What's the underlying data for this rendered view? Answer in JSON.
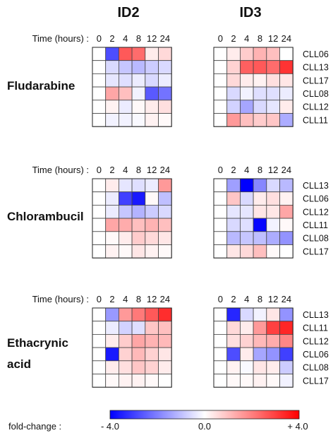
{
  "chart_data": {
    "type": "heatmap",
    "columns": [
      "ID2",
      "ID3"
    ],
    "time_label": "Time (hours) :",
    "timepoints": [
      "0",
      "2",
      "4",
      "8",
      "12",
      "24"
    ],
    "value_range": [
      -4,
      4
    ],
    "colorbar": {
      "label": "fold-change :",
      "ticks": [
        "- 4.0",
        "0.0",
        "+ 4.0"
      ],
      "low_color": "#0000ff",
      "mid_color": "#ffffff",
      "high_color": "#ff0000"
    },
    "panels": [
      {
        "drug": [
          "Fludarabine"
        ],
        "rows": [
          "CLL06",
          "CLL13",
          "CLL17",
          "CLL08",
          "CLL12",
          "CLL11"
        ],
        "ID2": [
          [
            0,
            -2.8,
            2.6,
            2.3,
            0.3,
            0.6
          ],
          [
            0,
            -0.6,
            -0.9,
            -1.1,
            -0.8,
            -0.6
          ],
          [
            0,
            -0.4,
            -0.5,
            -0.3,
            -0.6,
            -0.3
          ],
          [
            0,
            1.4,
            1.0,
            -0.2,
            -2.6,
            -2.2
          ],
          [
            0,
            0.2,
            -0.3,
            0.1,
            0.3,
            0.5
          ],
          [
            0,
            -0.2,
            -0.2,
            -0.1,
            0.2,
            0.1
          ]
        ],
        "ID3": [
          [
            0,
            0.3,
            0.8,
            1.2,
            1.0,
            0.0
          ],
          [
            0,
            0.7,
            2.5,
            2.6,
            2.3,
            3.2
          ],
          [
            0,
            0.6,
            0.3,
            0.2,
            0.5,
            0.4
          ],
          [
            0,
            -0.6,
            -0.2,
            -0.5,
            -0.5,
            -0.3
          ],
          [
            0,
            -0.7,
            -1.4,
            -0.6,
            -0.4,
            0.3
          ],
          [
            0,
            1.6,
            1.0,
            0.8,
            0.9,
            -1.3
          ]
        ]
      },
      {
        "drug": [
          "Chlorambucil"
        ],
        "rows": [
          "CLL13",
          "CLL06",
          "CLL12",
          "CLL11",
          "CLL08",
          "CLL17"
        ],
        "ID2": [
          [
            0,
            0.3,
            -0.4,
            -0.5,
            -0.3,
            1.6
          ],
          [
            0,
            -0.3,
            -3.0,
            -3.6,
            0.1,
            -1.0
          ],
          [
            0,
            -0.3,
            -0.9,
            -1.2,
            -0.8,
            -0.6
          ],
          [
            0,
            1.4,
            1.3,
            1.0,
            1.2,
            1.0
          ],
          [
            0,
            0.1,
            0.3,
            0.8,
            0.6,
            0.4
          ],
          [
            0,
            0.2,
            0.1,
            0.4,
            0.2,
            0.1
          ]
        ],
        "ID3": [
          [
            0,
            -1.5,
            -4.0,
            -1.9,
            -0.6,
            -1.1
          ],
          [
            0,
            0.9,
            -0.6,
            0.3,
            0.5,
            0.2
          ],
          [
            0,
            -0.4,
            -0.4,
            0.4,
            0.4,
            1.4
          ],
          [
            0,
            -0.6,
            -0.5,
            -3.9,
            -0.2,
            0.1
          ],
          [
            0,
            -1.1,
            -0.9,
            -1.0,
            -1.3,
            -1.7
          ],
          [
            0,
            0.4,
            0.6,
            1.0,
            0.1,
            0.0
          ]
        ]
      },
      {
        "drug": [
          "Ethacrynic",
          "acid"
        ],
        "rows": [
          "CLL13",
          "CLL11",
          "CLL12",
          "CLL06",
          "CLL08",
          "CLL17"
        ],
        "ID2": [
          [
            0,
            -1.6,
            1.6,
            2.1,
            2.6,
            3.3
          ],
          [
            0,
            -0.3,
            -0.7,
            -0.5,
            0.9,
            1.0
          ],
          [
            0,
            0.3,
            0.8,
            1.4,
            1.2,
            1.1
          ],
          [
            0,
            -3.6,
            0.7,
            1.1,
            0.7,
            0.4
          ],
          [
            0,
            0.3,
            0.5,
            0.9,
            0.7,
            0.3
          ],
          [
            0,
            0.1,
            0.2,
            0.2,
            0.1,
            0.0
          ]
        ],
        "ID3": [
          [
            0,
            -3.4,
            -0.6,
            -0.2,
            0.4,
            -1.7
          ],
          [
            0,
            0.6,
            0.3,
            1.6,
            3.0,
            3.4
          ],
          [
            0,
            0.5,
            0.7,
            1.1,
            1.3,
            1.9
          ],
          [
            0,
            -2.8,
            0.3,
            -1.4,
            -1.7,
            -3.0
          ],
          [
            0,
            0.2,
            -0.1,
            0.4,
            0.3,
            -0.8
          ],
          [
            0,
            0.1,
            0.1,
            0.2,
            0.1,
            -0.2
          ]
        ]
      }
    ]
  }
}
